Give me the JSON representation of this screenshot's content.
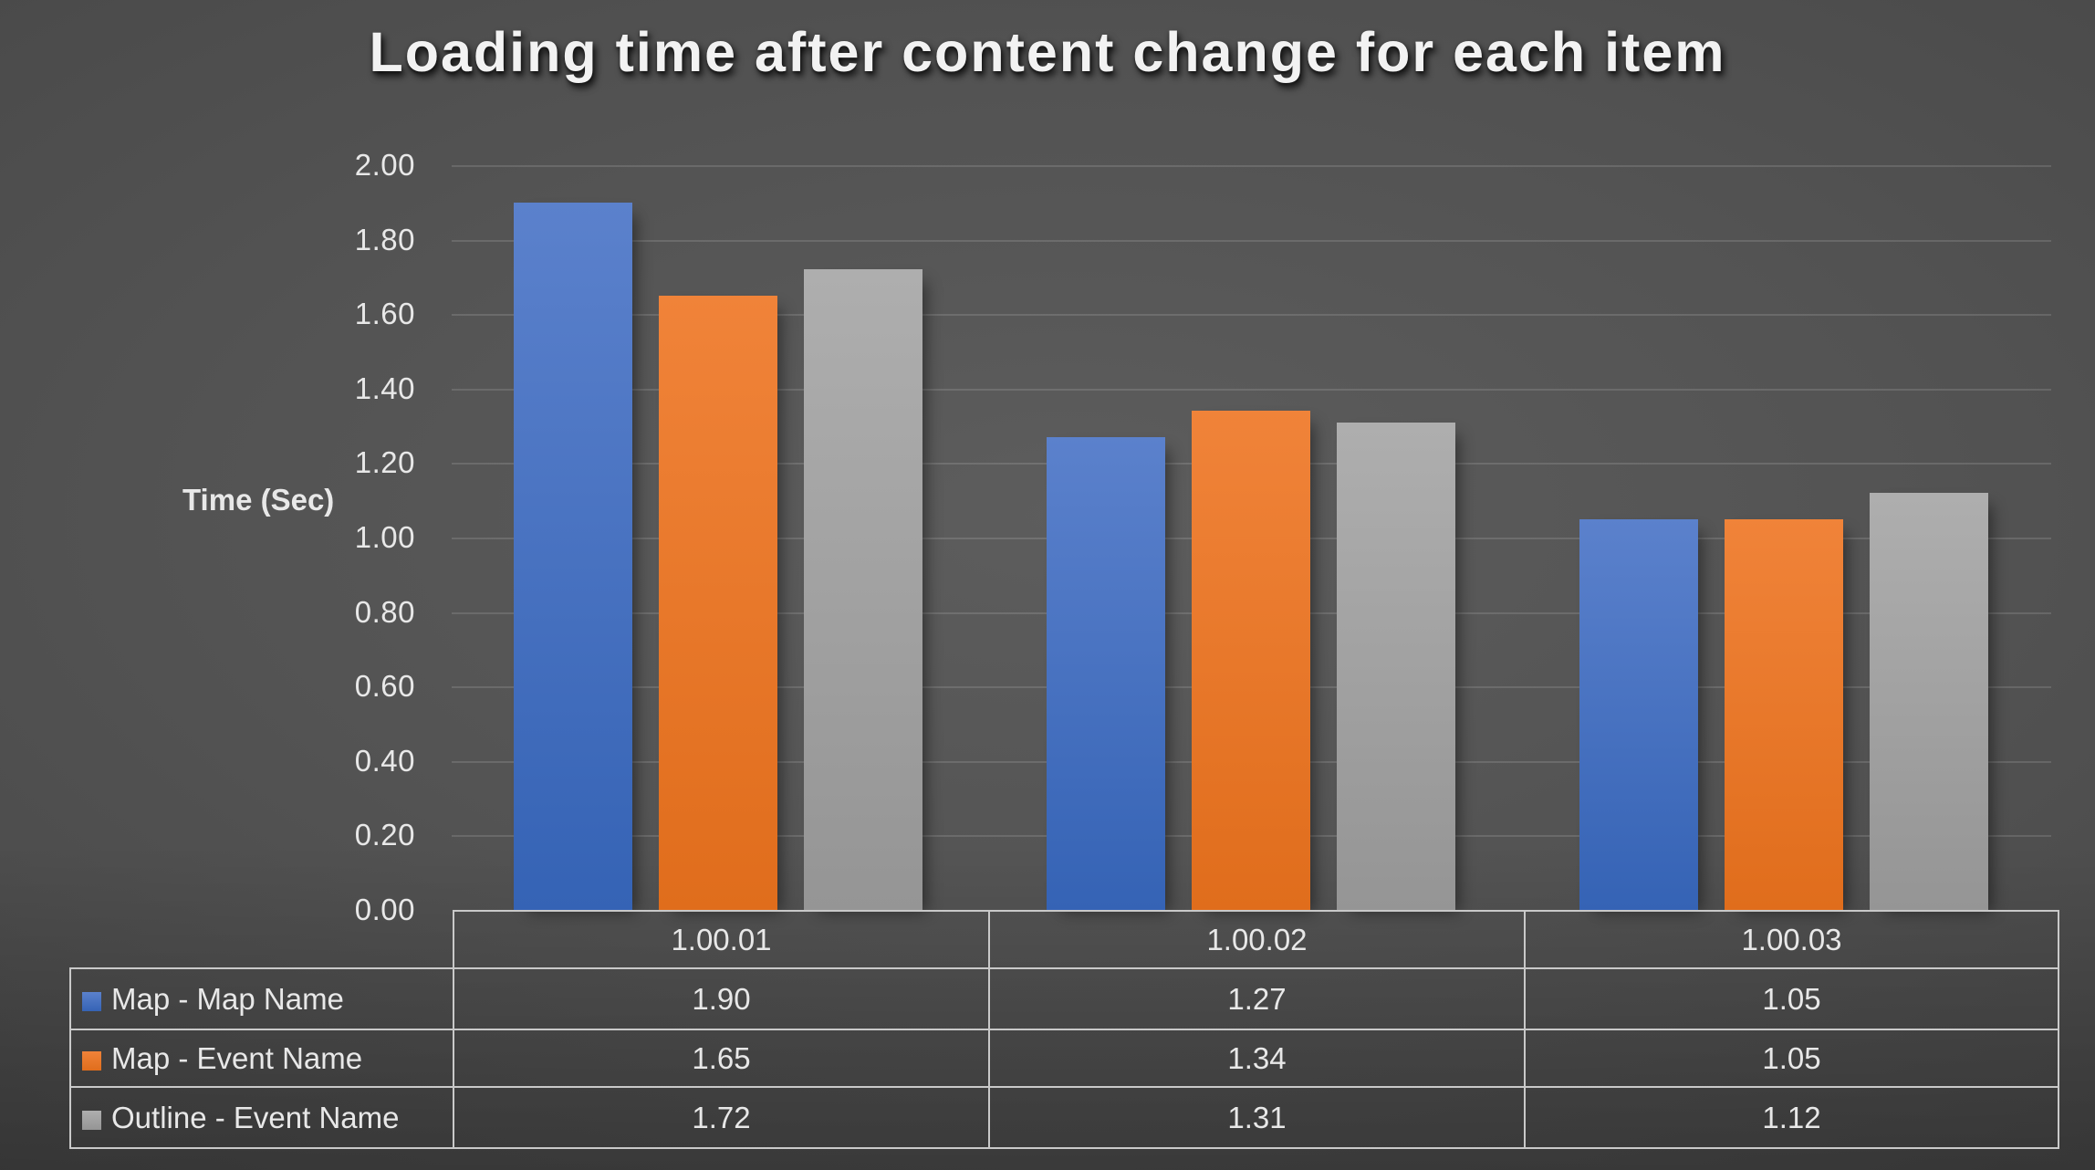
{
  "title": "Loading time after content change for each item",
  "chart_data": {
    "type": "bar",
    "title": "Loading time after content change for each item",
    "xlabel": "",
    "ylabel": "Time (Sec)",
    "categories": [
      "1.00.01",
      "1.00.02",
      "1.00.03"
    ],
    "series": [
      {
        "name": "Map - Map Name",
        "color": "#4472C4",
        "values": [
          1.9,
          1.27,
          1.05
        ]
      },
      {
        "name": "Map - Event Name",
        "color": "#ED7D31",
        "values": [
          1.65,
          1.34,
          1.05
        ]
      },
      {
        "name": "Outline - Event Name",
        "color": "#A5A5A5",
        "values": [
          1.72,
          1.31,
          1.12
        ]
      }
    ],
    "ylim": [
      0,
      2.0
    ],
    "ytick_step": 0.2,
    "ytick_labels": [
      "2.00",
      "1.80",
      "1.60",
      "1.40",
      "1.20",
      "1.00",
      "0.80",
      "0.60",
      "0.40",
      "0.20",
      "0.00"
    ],
    "grid": true,
    "legend_position": "data-table-left",
    "value_format": "two-decimals"
  },
  "style": {
    "text_color": "#e8e8e8",
    "title_color": "#f2f2f2",
    "gridline_color": "rgba(255,255,255,0.13)",
    "table_border_color": "#c9c9c9",
    "background_center": "#5d5d5d",
    "background_edge": "#242424",
    "series_gradients": [
      [
        "#5b81cc",
        "#3563b5"
      ],
      [
        "#f08339",
        "#e06d1c"
      ],
      [
        "#aeaeae",
        "#959595"
      ]
    ]
  }
}
